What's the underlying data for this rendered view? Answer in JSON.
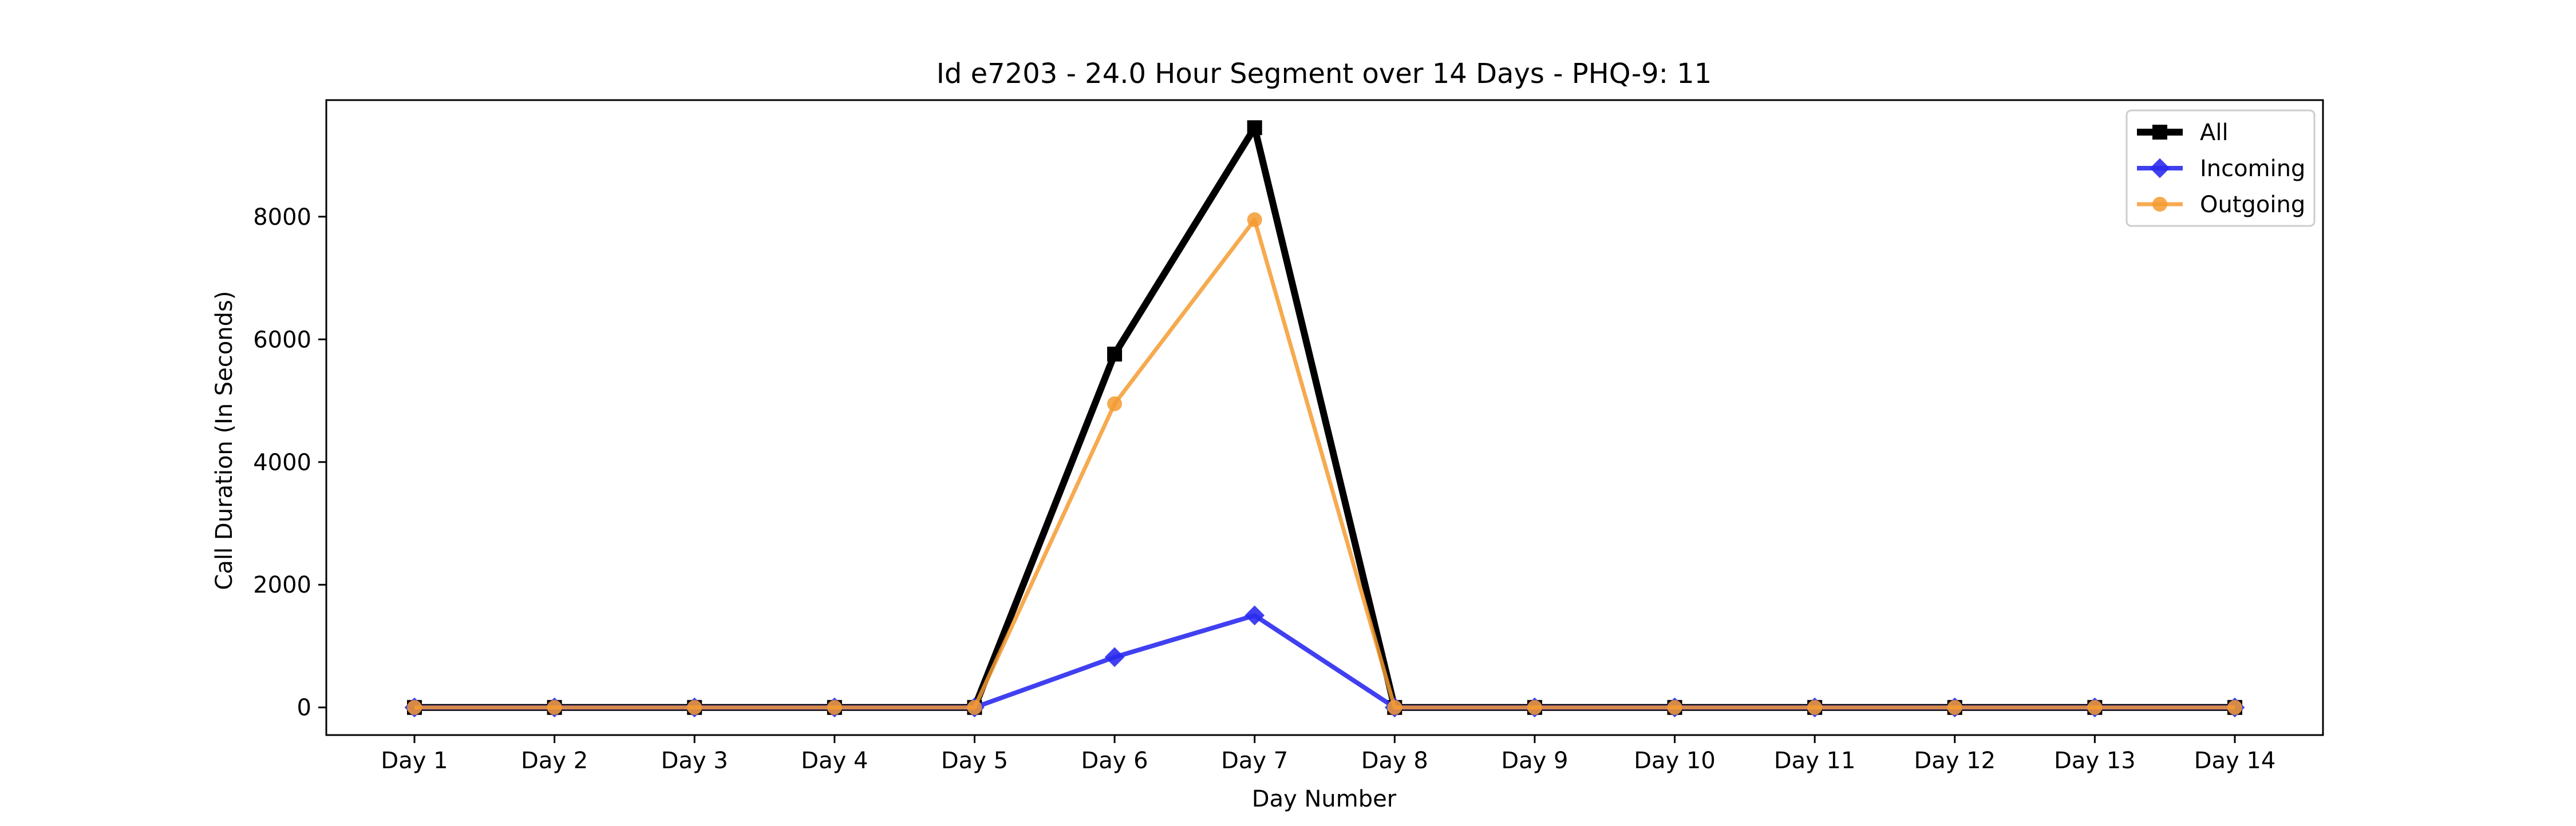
{
  "chart_data": {
    "type": "line",
    "title": "Id e7203 - 24.0 Hour Segment over 14 Days - PHQ-9: 11",
    "xlabel": "Day Number",
    "ylabel": "Call Duration (In Seconds)",
    "categories": [
      "Day 1",
      "Day 2",
      "Day 3",
      "Day 4",
      "Day 5",
      "Day 6",
      "Day 7",
      "Day 8",
      "Day 9",
      "Day 10",
      "Day 11",
      "Day 12",
      "Day 13",
      "Day 14"
    ],
    "ylim": [
      -450,
      9900
    ],
    "yticks": [
      0,
      2000,
      4000,
      6000,
      8000
    ],
    "grid": false,
    "legend_position": "top-right",
    "series": [
      {
        "name": "All",
        "color": "#000000",
        "marker": "square",
        "values": [
          0,
          0,
          0,
          0,
          0,
          5760,
          9450,
          0,
          0,
          0,
          0,
          0,
          0,
          0
        ]
      },
      {
        "name": "Incoming",
        "color": "#2b2bf0",
        "marker": "diamond",
        "values": [
          0,
          0,
          0,
          0,
          0,
          820,
          1500,
          0,
          0,
          0,
          0,
          0,
          0,
          0
        ]
      },
      {
        "name": "Outgoing",
        "color": "#f59b30",
        "marker": "circle",
        "values": [
          0,
          0,
          0,
          0,
          0,
          4950,
          7950,
          0,
          0,
          0,
          0,
          0,
          0,
          0
        ]
      }
    ]
  }
}
